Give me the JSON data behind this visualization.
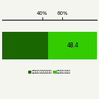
{
  "bar_segments": [
    46.1,
    48.4
  ],
  "bar_colors": [
    "#1a6600",
    "#33cc00"
  ],
  "bar_label": "48.4",
  "xtick_positions": [
    40,
    60
  ],
  "xtick_labels": [
    "40%",
    "60%"
  ],
  "xlim": [
    0,
    94.5
  ],
  "ylim": [
    -0.7,
    0.7
  ],
  "bar_height": 0.75,
  "legend_labels": [
    "どちらかと言えば好き",
    "どちらかと言え"
  ],
  "legend_colors": [
    "#1a6600",
    "#33cc00"
  ],
  "background_color": "#f5f5f0",
  "figsize": [
    1.4,
    1.4
  ],
  "dpi": 100
}
